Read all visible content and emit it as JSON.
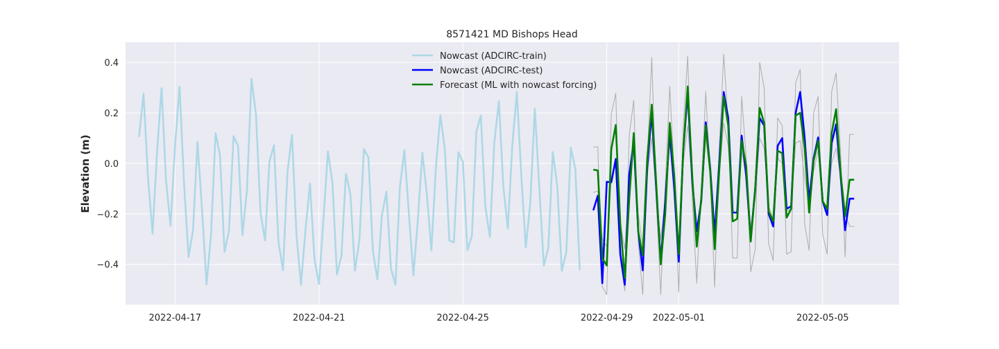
{
  "chart_data": {
    "type": "line",
    "title": "8571421 MD Bishops Head",
    "xlabel": "",
    "ylabel": "Elevation (m)",
    "ylim": [
      -0.56,
      0.48
    ],
    "xlim": [
      "2022-04-15 15:00",
      "2022-05-07 03:00"
    ],
    "grid": true,
    "legend_position": "upper center",
    "x_ticks": [
      "2022-04-17",
      "2022-04-21",
      "2022-04-25",
      "2022-04-29",
      "2022-05-01",
      "2022-05-05"
    ],
    "y_ticks": [
      0.4,
      0.2,
      0.0,
      -0.2,
      -0.4
    ],
    "y_tick_labels": [
      "0.4",
      "0.2",
      "0.0",
      "−0.2",
      "−0.4"
    ],
    "series": [
      {
        "name": "Nowcast (ADCIRC-train)",
        "color": "#add8e6",
        "x": [
          "2022-04-16 00:00",
          "2022-04-16 03:00",
          "2022-04-16 06:00",
          "2022-04-16 09:00",
          "2022-04-16 12:00",
          "2022-04-16 15:00",
          "2022-04-16 18:00",
          "2022-04-16 21:00",
          "2022-04-17 00:00",
          "2022-04-17 03:00",
          "2022-04-17 06:00",
          "2022-04-17 09:00",
          "2022-04-17 12:00",
          "2022-04-17 15:00",
          "2022-04-17 18:00",
          "2022-04-17 21:00",
          "2022-04-18 00:00",
          "2022-04-18 03:00",
          "2022-04-18 06:00",
          "2022-04-18 09:00",
          "2022-04-18 12:00",
          "2022-04-18 15:00",
          "2022-04-18 18:00",
          "2022-04-18 21:00",
          "2022-04-19 00:00",
          "2022-04-19 03:00",
          "2022-04-19 06:00",
          "2022-04-19 09:00",
          "2022-04-19 12:00",
          "2022-04-19 15:00",
          "2022-04-19 18:00",
          "2022-04-19 21:00",
          "2022-04-20 00:00",
          "2022-04-20 03:00",
          "2022-04-20 06:00",
          "2022-04-20 09:00",
          "2022-04-20 12:00",
          "2022-04-20 15:00",
          "2022-04-20 18:00",
          "2022-04-20 21:00",
          "2022-04-21 00:00",
          "2022-04-21 03:00",
          "2022-04-21 06:00",
          "2022-04-21 09:00",
          "2022-04-21 12:00",
          "2022-04-21 15:00",
          "2022-04-21 18:00",
          "2022-04-21 21:00",
          "2022-04-22 00:00",
          "2022-04-22 03:00",
          "2022-04-22 06:00",
          "2022-04-22 09:00",
          "2022-04-22 12:00",
          "2022-04-22 15:00",
          "2022-04-22 18:00",
          "2022-04-22 21:00",
          "2022-04-23 00:00",
          "2022-04-23 03:00",
          "2022-04-23 06:00",
          "2022-04-23 09:00",
          "2022-04-23 12:00",
          "2022-04-23 15:00",
          "2022-04-23 18:00",
          "2022-04-23 21:00",
          "2022-04-24 00:00",
          "2022-04-24 03:00",
          "2022-04-24 06:00",
          "2022-04-24 09:00",
          "2022-04-24 12:00",
          "2022-04-24 15:00",
          "2022-04-24 18:00",
          "2022-04-24 21:00",
          "2022-04-25 00:00",
          "2022-04-25 03:00",
          "2022-04-25 06:00",
          "2022-04-25 09:00",
          "2022-04-25 12:00",
          "2022-04-25 15:00",
          "2022-04-25 18:00",
          "2022-04-25 21:00",
          "2022-04-26 00:00",
          "2022-04-26 03:00",
          "2022-04-26 06:00",
          "2022-04-26 09:00",
          "2022-04-26 12:00",
          "2022-04-26 15:00",
          "2022-04-26 18:00",
          "2022-04-26 21:00",
          "2022-04-27 00:00",
          "2022-04-27 03:00",
          "2022-04-27 06:00",
          "2022-04-27 09:00",
          "2022-04-27 12:00",
          "2022-04-27 15:00",
          "2022-04-27 18:00",
          "2022-04-27 21:00",
          "2022-04-28 00:00",
          "2022-04-28 03:00",
          "2022-04-28 06:00"
        ],
        "y": [
          0.105,
          0.277,
          -0.059,
          -0.278,
          0.045,
          0.298,
          -0.068,
          -0.247,
          0.07,
          0.304,
          -0.08,
          -0.371,
          -0.265,
          0.085,
          -0.184,
          -0.479,
          -0.283,
          0.12,
          0.032,
          -0.351,
          -0.265,
          0.108,
          0.07,
          -0.284,
          -0.105,
          0.335,
          0.193,
          -0.194,
          -0.306,
          0.007,
          0.072,
          -0.312,
          -0.424,
          -0.033,
          0.113,
          -0.28,
          -0.481,
          -0.266,
          -0.08,
          -0.38,
          -0.478,
          -0.224,
          0.048,
          -0.077,
          -0.441,
          -0.366,
          -0.042,
          -0.123,
          -0.425,
          -0.304,
          0.057,
          0.023,
          -0.347,
          -0.46,
          -0.206,
          -0.112,
          -0.416,
          -0.481,
          -0.096,
          0.052,
          -0.199,
          -0.444,
          -0.22,
          0.043,
          -0.122,
          -0.345,
          -0.015,
          0.191,
          0.054,
          -0.306,
          -0.313,
          0.044,
          0.006,
          -0.344,
          -0.288,
          0.126,
          0.189,
          -0.171,
          -0.292,
          0.084,
          0.247,
          -0.091,
          -0.259,
          0.071,
          0.283,
          -0.052,
          -0.333,
          -0.157,
          0.216,
          -0.097,
          -0.405,
          -0.336,
          0.045,
          -0.092,
          -0.426,
          -0.352,
          0.062,
          -0.021,
          -0.423
        ]
      },
      {
        "name": "Nowcast (ADCIRC-test)",
        "color": "#0000ff",
        "x": [
          "2022-04-28 15:00",
          "2022-04-28 18:00",
          "2022-04-28 21:00",
          "2022-04-29 00:00",
          "2022-04-29 03:00",
          "2022-04-29 06:00",
          "2022-04-29 09:00",
          "2022-04-29 12:00",
          "2022-04-29 15:00",
          "2022-04-29 18:00",
          "2022-04-29 21:00",
          "2022-04-30 00:00",
          "2022-04-30 03:00",
          "2022-04-30 06:00",
          "2022-04-30 09:00",
          "2022-04-30 12:00",
          "2022-04-30 15:00",
          "2022-04-30 18:00",
          "2022-04-30 21:00",
          "2022-05-01 00:00",
          "2022-05-01 03:00",
          "2022-05-01 06:00",
          "2022-05-01 09:00",
          "2022-05-01 12:00",
          "2022-05-01 15:00",
          "2022-05-01 18:00",
          "2022-05-01 21:00",
          "2022-05-02 00:00",
          "2022-05-02 03:00",
          "2022-05-02 06:00",
          "2022-05-02 09:00",
          "2022-05-02 12:00",
          "2022-05-02 15:00",
          "2022-05-02 18:00",
          "2022-05-02 21:00",
          "2022-05-03 00:00",
          "2022-05-03 03:00",
          "2022-05-03 06:00",
          "2022-05-03 09:00",
          "2022-05-03 12:00",
          "2022-05-03 15:00",
          "2022-05-03 18:00",
          "2022-05-03 21:00",
          "2022-05-04 00:00",
          "2022-05-04 03:00",
          "2022-05-04 06:00",
          "2022-05-04 09:00",
          "2022-05-04 12:00",
          "2022-05-04 15:00",
          "2022-05-04 18:00",
          "2022-05-04 21:00",
          "2022-05-05 00:00",
          "2022-05-05 03:00",
          "2022-05-05 06:00",
          "2022-05-05 09:00",
          "2022-05-05 12:00",
          "2022-05-05 15:00",
          "2022-05-05 18:00",
          "2022-05-05 21:00"
        ],
        "y": [
          -0.186,
          -0.128,
          -0.475,
          -0.073,
          -0.075,
          0.017,
          -0.36,
          -0.481,
          -0.045,
          0.085,
          -0.27,
          -0.424,
          -0.01,
          0.2,
          -0.1,
          -0.39,
          -0.15,
          0.12,
          -0.1,
          -0.39,
          0.05,
          0.28,
          -0.07,
          -0.27,
          -0.15,
          0.163,
          -0.02,
          -0.28,
          0.0,
          0.283,
          0.18,
          -0.195,
          -0.195,
          0.11,
          -0.05,
          -0.3,
          -0.1,
          0.18,
          0.15,
          -0.2,
          -0.25,
          0.07,
          0.1,
          -0.18,
          -0.17,
          0.2,
          0.283,
          0.1,
          -0.15,
          0.02,
          0.103,
          -0.15,
          -0.205,
          0.08,
          0.155,
          -0.05,
          -0.265,
          -0.14,
          -0.14
        ]
      },
      {
        "name": "Forecast (ML with nowcast forcing)",
        "color": "#008000",
        "x": [
          "2022-04-28 15:00",
          "2022-04-28 18:00",
          "2022-04-28 21:00",
          "2022-04-29 00:00",
          "2022-04-29 03:00",
          "2022-04-29 06:00",
          "2022-04-29 09:00",
          "2022-04-29 12:00",
          "2022-04-29 15:00",
          "2022-04-29 18:00",
          "2022-04-29 21:00",
          "2022-04-30 00:00",
          "2022-04-30 03:00",
          "2022-04-30 06:00",
          "2022-04-30 09:00",
          "2022-04-30 12:00",
          "2022-04-30 15:00",
          "2022-04-30 18:00",
          "2022-04-30 21:00",
          "2022-05-01 00:00",
          "2022-05-01 03:00",
          "2022-05-01 06:00",
          "2022-05-01 09:00",
          "2022-05-01 12:00",
          "2022-05-01 15:00",
          "2022-05-01 18:00",
          "2022-05-01 21:00",
          "2022-05-02 00:00",
          "2022-05-02 03:00",
          "2022-05-02 06:00",
          "2022-05-02 09:00",
          "2022-05-02 12:00",
          "2022-05-02 15:00",
          "2022-05-02 18:00",
          "2022-05-02 21:00",
          "2022-05-03 00:00",
          "2022-05-03 03:00",
          "2022-05-03 06:00",
          "2022-05-03 09:00",
          "2022-05-03 12:00",
          "2022-05-03 15:00",
          "2022-05-03 18:00",
          "2022-05-03 21:00",
          "2022-05-04 00:00",
          "2022-05-04 03:00",
          "2022-05-04 06:00",
          "2022-05-04 09:00",
          "2022-05-04 12:00",
          "2022-05-04 15:00",
          "2022-05-04 18:00",
          "2022-05-04 21:00",
          "2022-05-05 00:00",
          "2022-05-05 03:00",
          "2022-05-05 06:00",
          "2022-05-05 09:00",
          "2022-05-05 12:00",
          "2022-05-05 15:00",
          "2022-05-05 18:00",
          "2022-05-05 21:00"
        ],
        "y": [
          -0.025,
          -0.028,
          -0.375,
          -0.405,
          0.055,
          0.152,
          -0.24,
          -0.455,
          -0.14,
          0.12,
          -0.27,
          -0.365,
          0.02,
          0.233,
          -0.08,
          -0.4,
          -0.2,
          0.16,
          -0.05,
          -0.36,
          0.05,
          0.305,
          -0.05,
          -0.33,
          -0.14,
          0.15,
          -0.03,
          -0.34,
          -0.03,
          0.265,
          0.15,
          -0.23,
          -0.22,
          0.09,
          -0.01,
          -0.31,
          -0.1,
          0.22,
          0.16,
          -0.19,
          -0.23,
          0.05,
          0.04,
          -0.215,
          -0.18,
          0.19,
          0.2,
          0.06,
          -0.195,
          0.01,
          0.09,
          -0.15,
          -0.18,
          0.12,
          0.215,
          -0.04,
          -0.21,
          -0.065,
          -0.065
        ]
      },
      {
        "name": "",
        "color": "#b0b0b0",
        "x": [
          "2022-04-28 15:00",
          "2022-04-28 18:00",
          "2022-04-28 21:00",
          "2022-04-29 00:00",
          "2022-04-29 03:00",
          "2022-04-29 06:00",
          "2022-04-29 09:00",
          "2022-04-29 12:00",
          "2022-04-29 15:00",
          "2022-04-29 18:00",
          "2022-04-29 21:00",
          "2022-04-30 00:00",
          "2022-04-30 03:00",
          "2022-04-30 06:00",
          "2022-04-30 09:00",
          "2022-04-30 12:00",
          "2022-04-30 15:00",
          "2022-04-30 18:00",
          "2022-04-30 21:00",
          "2022-05-01 00:00",
          "2022-05-01 03:00",
          "2022-05-01 06:00",
          "2022-05-01 09:00",
          "2022-05-01 12:00",
          "2022-05-01 15:00",
          "2022-05-01 18:00",
          "2022-05-01 21:00",
          "2022-05-02 00:00",
          "2022-05-02 03:00",
          "2022-05-02 06:00",
          "2022-05-02 09:00",
          "2022-05-02 12:00",
          "2022-05-02 15:00",
          "2022-05-02 18:00",
          "2022-05-02 21:00",
          "2022-05-03 00:00",
          "2022-05-03 03:00",
          "2022-05-03 06:00",
          "2022-05-03 09:00",
          "2022-05-03 12:00",
          "2022-05-03 15:00",
          "2022-05-03 18:00",
          "2022-05-03 21:00",
          "2022-05-04 00:00",
          "2022-05-04 03:00",
          "2022-05-04 06:00",
          "2022-05-04 09:00",
          "2022-05-04 12:00",
          "2022-05-04 15:00",
          "2022-05-04 18:00",
          "2022-05-04 21:00",
          "2022-05-05 00:00",
          "2022-05-05 03:00",
          "2022-05-05 06:00",
          "2022-05-05 09:00",
          "2022-05-05 12:00",
          "2022-05-05 15:00",
          "2022-05-05 18:00",
          "2022-05-05 21:00"
        ],
        "y": [
          0.065,
          0.065,
          -0.49,
          -0.52,
          0.195,
          0.278,
          -0.38,
          -0.505,
          0.11,
          0.25,
          -0.31,
          -0.52,
          0.02,
          0.42,
          -0.14,
          -0.52,
          -0.09,
          0.305,
          -0.05,
          -0.51,
          0.14,
          0.425,
          -0.14,
          -0.475,
          -0.1,
          0.285,
          -0.05,
          -0.49,
          0.06,
          0.433,
          0.15,
          -0.375,
          -0.375,
          0.265,
          0.02,
          -0.43,
          -0.34,
          0.4,
          0.3,
          -0.32,
          -0.385,
          0.18,
          0.15,
          -0.36,
          -0.35,
          0.32,
          0.372,
          -0.24,
          -0.345,
          0.2,
          0.265,
          -0.28,
          -0.36,
          0.285,
          0.358,
          0.04,
          -0.37,
          0.115,
          0.115
        ]
      },
      {
        "name": "",
        "color": "#b0b0b0",
        "x": [
          "2022-04-28 15:00",
          "2022-04-28 18:00",
          "2022-04-28 21:00",
          "2022-04-29 00:00",
          "2022-04-29 03:00",
          "2022-04-29 06:00",
          "2022-04-29 09:00",
          "2022-04-29 12:00",
          "2022-04-29 15:00",
          "2022-04-29 18:00",
          "2022-04-29 21:00",
          "2022-04-30 00:00",
          "2022-04-30 03:00",
          "2022-04-30 06:00",
          "2022-04-30 09:00",
          "2022-04-30 12:00",
          "2022-04-30 15:00",
          "2022-04-30 18:00",
          "2022-04-30 21:00",
          "2022-05-01 00:00",
          "2022-05-01 03:00",
          "2022-05-01 06:00",
          "2022-05-01 09:00",
          "2022-05-01 12:00",
          "2022-05-01 15:00",
          "2022-05-01 18:00",
          "2022-05-01 21:00",
          "2022-05-02 00:00",
          "2022-05-02 03:00",
          "2022-05-02 06:00",
          "2022-05-02 09:00",
          "2022-05-02 12:00",
          "2022-05-02 15:00",
          "2022-05-02 18:00",
          "2022-05-02 21:00",
          "2022-05-03 00:00",
          "2022-05-03 03:00",
          "2022-05-03 06:00",
          "2022-05-03 09:00",
          "2022-05-03 12:00",
          "2022-05-03 15:00",
          "2022-05-03 18:00",
          "2022-05-03 21:00",
          "2022-05-04 00:00",
          "2022-05-04 03:00",
          "2022-05-04 06:00",
          "2022-05-04 09:00",
          "2022-05-04 12:00",
          "2022-05-04 15:00",
          "2022-05-04 18:00",
          "2022-05-04 21:00",
          "2022-05-05 00:00",
          "2022-05-05 03:00",
          "2022-05-05 06:00",
          "2022-05-05 09:00",
          "2022-05-05 12:00",
          "2022-05-05 15:00",
          "2022-05-05 18:00",
          "2022-05-05 21:00"
        ],
        "y": [
          -0.115,
          -0.11,
          -0.3,
          -0.33,
          -0.06,
          0.02,
          -0.24,
          -0.34,
          -0.08,
          0.05,
          -0.2,
          -0.33,
          -0.05,
          0.1,
          -0.12,
          -0.3,
          -0.15,
          0.08,
          -0.1,
          -0.32,
          0.0,
          0.15,
          -0.08,
          -0.25,
          -0.15,
          0.1,
          -0.05,
          -0.26,
          -0.05,
          0.16,
          0.07,
          -0.19,
          -0.2,
          0.05,
          -0.05,
          -0.25,
          -0.14,
          0.1,
          0.06,
          -0.17,
          -0.22,
          0.02,
          0.0,
          -0.19,
          -0.18,
          0.08,
          0.09,
          -0.06,
          -0.15,
          -0.03,
          0.05,
          -0.15,
          -0.18,
          0.0,
          0.06,
          -0.05,
          -0.2,
          -0.25,
          -0.25
        ]
      }
    ]
  }
}
